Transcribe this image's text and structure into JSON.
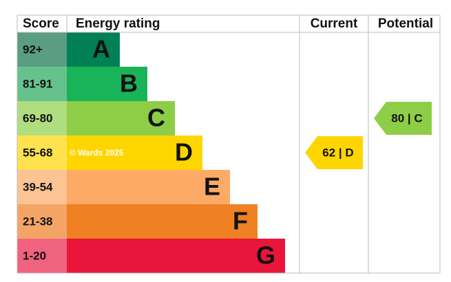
{
  "header": {
    "score": "Score",
    "rating": "Energy rating",
    "current": "Current",
    "potential": "Potential"
  },
  "bands": [
    {
      "score": "92+",
      "letter": "A",
      "color": "#008054",
      "score_color": "#5a9d82"
    },
    {
      "score": "81-91",
      "letter": "B",
      "color": "#19b459",
      "score_color": "#66c28c"
    },
    {
      "score": "69-80",
      "letter": "C",
      "color": "#8dce46",
      "score_color": "#b0dd80",
      "potential": "80 | C"
    },
    {
      "score": "55-68",
      "letter": "D",
      "color": "#ffd500",
      "score_color": "#ffe24d",
      "current": "62 | D"
    },
    {
      "score": "39-54",
      "letter": "E",
      "color": "#fcaa65",
      "score_color": "#fdc493"
    },
    {
      "score": "21-38",
      "letter": "F",
      "color": "#ef8023",
      "score_color": "#f4a566"
    },
    {
      "score": "1-20",
      "letter": "G",
      "color": "#e9153b",
      "score_color": "#f06280"
    }
  ],
  "watermark": "© Wards 2025"
}
